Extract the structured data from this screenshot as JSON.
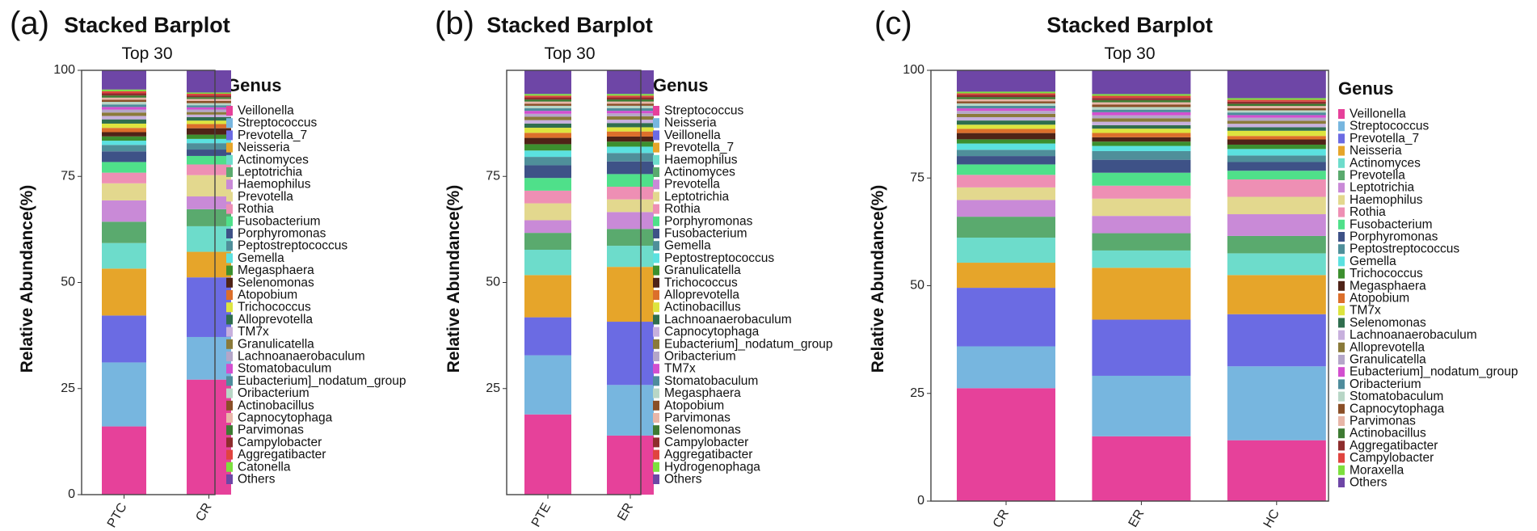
{
  "chart_data": [
    {
      "panel_label": "(a)",
      "type": "bar",
      "stacked": true,
      "title": "Stacked Barplot",
      "subtitle": "Top 30",
      "xlabel": "",
      "ylabel": "Relative Abundance(%)",
      "ylim": [
        0,
        100
      ],
      "yticks": [
        "0",
        "25",
        "50",
        "75",
        "100"
      ],
      "categories": [
        "PTC",
        "CR"
      ],
      "legend_title": "Genus",
      "legend_position": "right",
      "series": [
        {
          "name": "Veillonella",
          "color": "#e6419a",
          "values": [
            16,
            27
          ]
        },
        {
          "name": "Streptococcus",
          "color": "#77b6df",
          "values": [
            15,
            10
          ]
        },
        {
          "name": "Prevotella_7",
          "color": "#6b6be3",
          "values": [
            11,
            14
          ]
        },
        {
          "name": "Neisseria",
          "color": "#e6a52a",
          "values": [
            11,
            6
          ]
        },
        {
          "name": "Actinomyces",
          "color": "#6ddccb",
          "values": [
            6,
            6
          ]
        },
        {
          "name": "Leptotrichia",
          "color": "#5aaa6e",
          "values": [
            5,
            4
          ]
        },
        {
          "name": "Haemophilus",
          "color": "#c98ad7",
          "values": [
            5,
            3
          ]
        },
        {
          "name": "Prevotella",
          "color": "#e3d88e",
          "values": [
            4,
            5
          ]
        },
        {
          "name": "Rothia",
          "color": "#ee8fb4",
          "values": [
            2.5,
            2.5
          ]
        },
        {
          "name": "Fusobacterium",
          "color": "#4fe08a",
          "values": [
            2.5,
            2
          ]
        },
        {
          "name": "Porphyromonas",
          "color": "#3e5287",
          "values": [
            2.5,
            1.5
          ]
        },
        {
          "name": "Peptostreptococcus",
          "color": "#4f8f9a",
          "values": [
            1.5,
            1.5
          ]
        },
        {
          "name": "Gemella",
          "color": "#5be1e0",
          "values": [
            1,
            1
          ]
        },
        {
          "name": "Megasphaera",
          "color": "#3c8f2e",
          "values": [
            1,
            1
          ]
        },
        {
          "name": "Selenomonas",
          "color": "#4f2317",
          "values": [
            1,
            1.5
          ]
        },
        {
          "name": "Atopobium",
          "color": "#dc6f2b",
          "values": [
            1,
            1
          ]
        },
        {
          "name": "Trichococcus",
          "color": "#dde43f",
          "values": [
            1,
            0.8
          ]
        },
        {
          "name": "Alloprevotella",
          "color": "#2f6e4e",
          "values": [
            1,
            0.8
          ]
        },
        {
          "name": "TM7x",
          "color": "#c7b0dd",
          "values": [
            0.8,
            0.6
          ]
        },
        {
          "name": "Granulicatella",
          "color": "#8a7a3a",
          "values": [
            0.8,
            0.6
          ]
        },
        {
          "name": "Lachnoanaerobaculum",
          "color": "#b4a6c9",
          "values": [
            0.7,
            0.6
          ]
        },
        {
          "name": "Stomatobaculum",
          "color": "#d24fcf",
          "values": [
            0.6,
            0.5
          ]
        },
        {
          "name": "Eubacterium]_nodatum_group",
          "color": "#4e8c9c",
          "values": [
            0.6,
            0.5
          ]
        },
        {
          "name": "Oribacterium",
          "color": "#b8d6c6",
          "values": [
            0.6,
            0.5
          ]
        },
        {
          "name": "Actinobacillus",
          "color": "#8a4f27",
          "values": [
            0.5,
            0.5
          ]
        },
        {
          "name": "Capnocytophaga",
          "color": "#e8b6a8",
          "values": [
            0.5,
            0.5
          ]
        },
        {
          "name": "Parvimonas",
          "color": "#3d7a32",
          "values": [
            0.5,
            0.4
          ]
        },
        {
          "name": "Campylobacter",
          "color": "#8e2d2d",
          "values": [
            0.5,
            0.4
          ]
        },
        {
          "name": "Aggregatibacter",
          "color": "#e0443f",
          "values": [
            0.5,
            0.4
          ]
        },
        {
          "name": "Catonella",
          "color": "#7ddf3e",
          "values": [
            0.4,
            0.3
          ]
        },
        {
          "name": "Others",
          "color": "#6e46a6",
          "values": [
            4.5,
            5.2
          ]
        }
      ]
    },
    {
      "panel_label": "(b)",
      "type": "bar",
      "stacked": true,
      "title": "Stacked Barplot",
      "subtitle": "Top 30",
      "xlabel": "",
      "ylabel": "Relative Abundance(%)",
      "ylim": [
        0,
        100
      ],
      "yticks": [
        "25",
        "50",
        "75"
      ],
      "categories": [
        "PTE",
        "ER"
      ],
      "legend_title": "Genus",
      "legend_position": "right",
      "series": [
        {
          "name": "Streptococcus",
          "color": "#e6419a",
          "values": [
            19,
            14
          ]
        },
        {
          "name": "Neisseria",
          "color": "#77b6df",
          "values": [
            14,
            12
          ]
        },
        {
          "name": "Veillonella",
          "color": "#6b6be3",
          "values": [
            9,
            15
          ]
        },
        {
          "name": "Prevotella_7",
          "color": "#e6a52a",
          "values": [
            10,
            13
          ]
        },
        {
          "name": "Haemophilus",
          "color": "#6ddccb",
          "values": [
            6,
            5
          ]
        },
        {
          "name": "Actinomyces",
          "color": "#5aaa6e",
          "values": [
            4,
            4
          ]
        },
        {
          "name": "Prevotella",
          "color": "#c98ad7",
          "values": [
            3,
            4
          ]
        },
        {
          "name": "Leptotrichia",
          "color": "#e3d88e",
          "values": [
            4,
            3
          ]
        },
        {
          "name": "Rothia",
          "color": "#ee8fb4",
          "values": [
            3,
            3
          ]
        },
        {
          "name": "Porphyromonas",
          "color": "#4fe08a",
          "values": [
            3,
            3
          ]
        },
        {
          "name": "Fusobacterium",
          "color": "#3e5287",
          "values": [
            3,
            3
          ]
        },
        {
          "name": "Gemella",
          "color": "#4f8f9a",
          "values": [
            2,
            2
          ]
        },
        {
          "name": "Peptostreptococcus",
          "color": "#5be1e0",
          "values": [
            1.5,
            1.5
          ]
        },
        {
          "name": "Granulicatella",
          "color": "#3c8f2e",
          "values": [
            1.5,
            1.2
          ]
        },
        {
          "name": "Trichococcus",
          "color": "#4f2317",
          "values": [
            1.5,
            1.2
          ]
        },
        {
          "name": "Alloprevotella",
          "color": "#dc6f2b",
          "values": [
            1.2,
            1.2
          ]
        },
        {
          "name": "Actinobacillus",
          "color": "#dde43f",
          "values": [
            1.2,
            1
          ]
        },
        {
          "name": "Lachnoanaerobaculum",
          "color": "#2f6e4e",
          "values": [
            1,
            1
          ]
        },
        {
          "name": "Capnocytophaga",
          "color": "#c7b0dd",
          "values": [
            0.8,
            0.8
          ]
        },
        {
          "name": "Eubacterium]_nodatum_group",
          "color": "#8a7a3a",
          "values": [
            0.8,
            0.8
          ]
        },
        {
          "name": "Oribacterium",
          "color": "#b4a6c9",
          "values": [
            0.7,
            0.7
          ]
        },
        {
          "name": "TM7x",
          "color": "#d24fcf",
          "values": [
            0.7,
            0.6
          ]
        },
        {
          "name": "Stomatobaculum",
          "color": "#4e8c9c",
          "values": [
            0.6,
            0.6
          ]
        },
        {
          "name": "Megasphaera",
          "color": "#b8d6c6",
          "values": [
            0.6,
            0.6
          ]
        },
        {
          "name": "Atopobium",
          "color": "#8a4f27",
          "values": [
            0.5,
            0.5
          ]
        },
        {
          "name": "Parvimonas",
          "color": "#e8b6a8",
          "values": [
            0.5,
            0.5
          ]
        },
        {
          "name": "Selenomonas",
          "color": "#3d7a32",
          "values": [
            0.5,
            0.5
          ]
        },
        {
          "name": "Campylobacter",
          "color": "#8e2d2d",
          "values": [
            0.5,
            0.5
          ]
        },
        {
          "name": "Aggregatibacter",
          "color": "#e0443f",
          "values": [
            0.4,
            0.4
          ]
        },
        {
          "name": "Hydrogenophaga",
          "color": "#7ddf3e",
          "values": [
            0.4,
            0.4
          ]
        },
        {
          "name": "Others",
          "color": "#6e46a6",
          "values": [
            5.6,
            5.6
          ]
        }
      ]
    },
    {
      "panel_label": "(c)",
      "type": "bar",
      "stacked": true,
      "title": "Stacked Barplot",
      "subtitle": "Top 30",
      "xlabel": "",
      "ylabel": "Relative Abundance(%)",
      "ylim": [
        0,
        100
      ],
      "yticks": [
        "0",
        "25",
        "50",
        "75",
        "100"
      ],
      "categories": [
        "CR",
        "ER",
        "HC"
      ],
      "legend_title": "Genus",
      "legend_position": "right",
      "series": [
        {
          "name": "Veillonella",
          "color": "#e6419a",
          "values": [
            27,
            15,
            14
          ]
        },
        {
          "name": "Streptococcus",
          "color": "#77b6df",
          "values": [
            10,
            14,
            17
          ]
        },
        {
          "name": "Prevotella_7",
          "color": "#6b6be3",
          "values": [
            14,
            13,
            12
          ]
        },
        {
          "name": "Neisseria",
          "color": "#e6a52a",
          "values": [
            6,
            12,
            9
          ]
        },
        {
          "name": "Actinomyces",
          "color": "#6ddccb",
          "values": [
            6,
            4,
            5
          ]
        },
        {
          "name": "Prevotella",
          "color": "#5aaa6e",
          "values": [
            5,
            4,
            4
          ]
        },
        {
          "name": "Leptotrichia",
          "color": "#c98ad7",
          "values": [
            4,
            4,
            5
          ]
        },
        {
          "name": "Haemophilus",
          "color": "#e3d88e",
          "values": [
            3,
            4,
            4
          ]
        },
        {
          "name": "Rothia",
          "color": "#ee8fb4",
          "values": [
            3,
            3,
            4
          ]
        },
        {
          "name": "Fusobacterium",
          "color": "#4fe08a",
          "values": [
            2.5,
            3,
            2
          ]
        },
        {
          "name": "Porphyromonas",
          "color": "#3e5287",
          "values": [
            2,
            3,
            2
          ]
        },
        {
          "name": "Peptostreptococcus",
          "color": "#4f8f9a",
          "values": [
            1.5,
            2,
            1.5
          ]
        },
        {
          "name": "Gemella",
          "color": "#5be1e0",
          "values": [
            1.5,
            1.2,
            1.5
          ]
        },
        {
          "name": "Trichococcus",
          "color": "#3c8f2e",
          "values": [
            1,
            1,
            1
          ]
        },
        {
          "name": "Megasphaera",
          "color": "#4f2317",
          "values": [
            1.5,
            1,
            1.2
          ]
        },
        {
          "name": "Atopobium",
          "color": "#dc6f2b",
          "values": [
            1,
            1,
            0.8
          ]
        },
        {
          "name": "TM7x",
          "color": "#dde43f",
          "values": [
            1,
            1,
            1.2
          ]
        },
        {
          "name": "Selenomonas",
          "color": "#2f6e4e",
          "values": [
            1,
            0.8,
            0.8
          ]
        },
        {
          "name": "Lachnoanaerobaculum",
          "color": "#c7b0dd",
          "values": [
            0.8,
            0.8,
            0.8
          ]
        },
        {
          "name": "Alloprevotella",
          "color": "#8a7a3a",
          "values": [
            0.8,
            0.8,
            0.7
          ]
        },
        {
          "name": "Granulicatella",
          "color": "#b4a6c9",
          "values": [
            0.7,
            0.7,
            0.7
          ]
        },
        {
          "name": "Eubacterium]_nodatum_group",
          "color": "#d24fcf",
          "values": [
            0.6,
            0.7,
            0.6
          ]
        },
        {
          "name": "Oribacterium",
          "color": "#4e8c9c",
          "values": [
            0.6,
            0.6,
            0.6
          ]
        },
        {
          "name": "Stomatobaculum",
          "color": "#b8d6c6",
          "values": [
            0.6,
            0.6,
            0.5
          ]
        },
        {
          "name": "Capnocytophaga",
          "color": "#8a4f27",
          "values": [
            0.5,
            0.6,
            0.5
          ]
        },
        {
          "name": "Parvimonas",
          "color": "#e8b6a8",
          "values": [
            0.5,
            0.5,
            0.5
          ]
        },
        {
          "name": "Actinobacillus",
          "color": "#3d7a32",
          "values": [
            0.5,
            0.5,
            0.5
          ]
        },
        {
          "name": "Aggregatibacter",
          "color": "#8e2d2d",
          "values": [
            0.5,
            0.5,
            0.5
          ]
        },
        {
          "name": "Campylobacter",
          "color": "#e0443f",
          "values": [
            0.4,
            0.5,
            0.4
          ]
        },
        {
          "name": "Moraxella",
          "color": "#7ddf3e",
          "values": [
            0.4,
            0.4,
            0.4
          ]
        },
        {
          "name": "Others",
          "color": "#6e46a6",
          "values": [
            5.1,
            5.5,
            6.4
          ]
        }
      ]
    }
  ]
}
